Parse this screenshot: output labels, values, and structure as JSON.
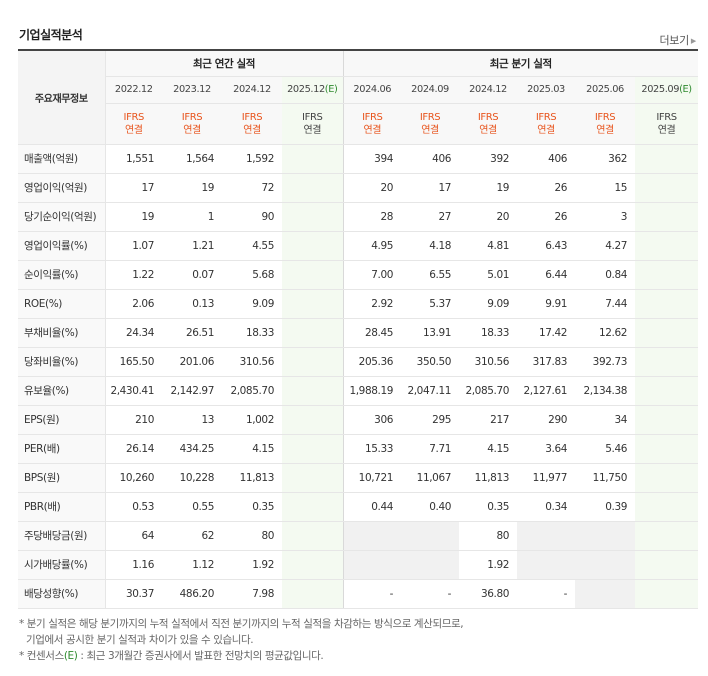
{
  "title": "기업실적분석",
  "more_label": "더보기",
  "more_arrow": "▶",
  "header": {
    "row_label": "주요재무정보",
    "annual_group": "최근 연간 실적",
    "quarter_group": "최근 분기 실적",
    "annual_periods": [
      "2022.12",
      "2023.12",
      "2024.12",
      "2025.12"
    ],
    "quarter_periods": [
      "2024.06",
      "2024.09",
      "2024.12",
      "2025.03",
      "2025.06",
      "2025.09"
    ],
    "estimate_marker": "(E)",
    "ifrs_top": "IFRS",
    "ifrs_bottom": "연결"
  },
  "rows": [
    {
      "label": "매출액(억원)",
      "annual": [
        "1,551",
        "1,564",
        "1,592",
        ""
      ],
      "quarter": [
        "394",
        "406",
        "392",
        "406",
        "362",
        ""
      ]
    },
    {
      "label": "영업이익(억원)",
      "annual": [
        "17",
        "19",
        "72",
        ""
      ],
      "quarter": [
        "20",
        "17",
        "19",
        "26",
        "15",
        ""
      ]
    },
    {
      "label": "당기순이익(억원)",
      "annual": [
        "19",
        "1",
        "90",
        ""
      ],
      "quarter": [
        "28",
        "27",
        "20",
        "26",
        "3",
        ""
      ]
    },
    {
      "label": "영업이익률(%)",
      "annual": [
        "1.07",
        "1.21",
        "4.55",
        ""
      ],
      "quarter": [
        "4.95",
        "4.18",
        "4.81",
        "6.43",
        "4.27",
        ""
      ]
    },
    {
      "label": "순이익률(%)",
      "annual": [
        "1.22",
        "0.07",
        "5.68",
        ""
      ],
      "quarter": [
        "7.00",
        "6.55",
        "5.01",
        "6.44",
        "0.84",
        ""
      ]
    },
    {
      "label": "ROE(%)",
      "annual": [
        "2.06",
        "0.13",
        "9.09",
        ""
      ],
      "quarter": [
        "2.92",
        "5.37",
        "9.09",
        "9.91",
        "7.44",
        ""
      ]
    },
    {
      "label": "부채비율(%)",
      "annual": [
        "24.34",
        "26.51",
        "18.33",
        ""
      ],
      "quarter": [
        "28.45",
        "13.91",
        "18.33",
        "17.42",
        "12.62",
        ""
      ]
    },
    {
      "label": "당좌비율(%)",
      "annual": [
        "165.50",
        "201.06",
        "310.56",
        ""
      ],
      "quarter": [
        "205.36",
        "350.50",
        "310.56",
        "317.83",
        "392.73",
        ""
      ]
    },
    {
      "label": "유보율(%)",
      "annual": [
        "2,430.41",
        "2,142.97",
        "2,085.70",
        ""
      ],
      "quarter": [
        "1,988.19",
        "2,047.11",
        "2,085.70",
        "2,127.61",
        "2,134.38",
        ""
      ]
    },
    {
      "label": "EPS(원)",
      "annual": [
        "210",
        "13",
        "1,002",
        ""
      ],
      "quarter": [
        "306",
        "295",
        "217",
        "290",
        "34",
        ""
      ]
    },
    {
      "label": "PER(배)",
      "annual": [
        "26.14",
        "434.25",
        "4.15",
        ""
      ],
      "quarter": [
        "15.33",
        "7.71",
        "4.15",
        "3.64",
        "5.46",
        ""
      ]
    },
    {
      "label": "BPS(원)",
      "annual": [
        "10,260",
        "10,228",
        "11,813",
        ""
      ],
      "quarter": [
        "10,721",
        "11,067",
        "11,813",
        "11,977",
        "11,750",
        ""
      ]
    },
    {
      "label": "PBR(배)",
      "annual": [
        "0.53",
        "0.55",
        "0.35",
        ""
      ],
      "quarter": [
        "0.44",
        "0.40",
        "0.35",
        "0.34",
        "0.39",
        ""
      ]
    },
    {
      "label": "주당배당금(원)",
      "annual": [
        "64",
        "62",
        "80",
        ""
      ],
      "quarter": [
        "",
        "",
        "80",
        "",
        "",
        ""
      ]
    },
    {
      "label": "시가배당률(%)",
      "annual": [
        "1.16",
        "1.12",
        "1.92",
        ""
      ],
      "quarter": [
        "",
        "",
        "1.92",
        "",
        "",
        ""
      ]
    },
    {
      "label": "배당성향(%)",
      "annual": [
        "30.37",
        "486.20",
        "7.98",
        ""
      ],
      "quarter": [
        "-",
        "-",
        "36.80",
        "-",
        "",
        ""
      ]
    }
  ],
  "notes": {
    "line1": "* 분기 실적은 해당 분기까지의 누적 실적에서 직전 분기까지의 누적 실적을 차감하는 방식으로 계산되므로,",
    "line2": "기업에서 공시한 분기 실적과 차이가 있을 수 있습니다.",
    "line3_prefix": "* 컨센서스",
    "line3_marker": "(E)",
    "line3_suffix": " : 최근 3개월간 증권사에서 발표한 전망치의 평균값입니다."
  },
  "colors": {
    "ifrs": "#e8551e",
    "estimate": "#2f8a2f",
    "estimate_bg": "#f4faf1"
  }
}
